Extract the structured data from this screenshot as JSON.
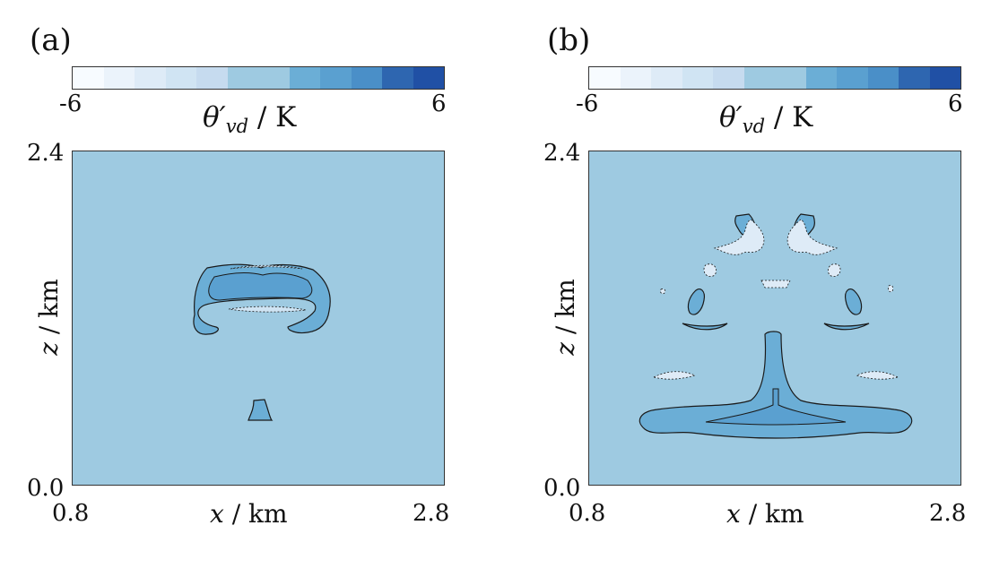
{
  "colormap": [
    "#f7fbff",
    "#ebf3fb",
    "#deebf7",
    "#d0e4f3",
    "#c6dbef",
    "#9ecae1",
    "#9ecae1",
    "#6baed6",
    "#5aa0d0",
    "#4a8fc8",
    "#2e66b0",
    "#2050a5"
  ],
  "chart_data": [
    {
      "type": "contour",
      "panel_label": "(a)",
      "colorbar": {
        "min": "-6",
        "max": "6",
        "label_symbol": "θ′",
        "label_sub": "vd",
        "label_unit": " / K"
      },
      "xlabel_var": "x",
      "xlabel_unit": " / km",
      "ylabel_var": "z",
      "ylabel_unit": " / km",
      "xlim": [
        0.8,
        2.8
      ],
      "ylim": [
        0.0,
        2.4
      ],
      "xticks": [
        "0.8",
        "2.8"
      ],
      "yticks": [
        "0.0",
        "2.4"
      ],
      "background_value": 0,
      "features": [
        {
          "kind": "warm_cap_outer",
          "value": 1.5
        },
        {
          "kind": "warm_cap_inner",
          "value": 3.0
        },
        {
          "kind": "cool_band",
          "value": -1.0
        },
        {
          "kind": "warm_stem",
          "value": 1.5
        }
      ]
    },
    {
      "type": "contour",
      "panel_label": "(b)",
      "colorbar": {
        "min": "-6",
        "max": "6",
        "label_symbol": "θ′",
        "label_sub": "vd",
        "label_unit": " / K"
      },
      "xlabel_var": "x",
      "xlabel_unit": " / km",
      "ylabel_var": "z",
      "ylabel_unit": " / km",
      "xlim": [
        0.8,
        2.8
      ],
      "ylim": [
        0.0,
        2.4
      ],
      "xticks": [
        "0.8",
        "2.8"
      ],
      "yticks": [
        "0.0",
        "2.4"
      ],
      "background_value": 0,
      "features": [
        {
          "kind": "warm_base",
          "value": 1.5
        },
        {
          "kind": "warm_base_core",
          "value": 3.0
        },
        {
          "kind": "warm_eddies",
          "value": 2.0
        },
        {
          "kind": "cool_filaments",
          "value": -1.5
        }
      ]
    }
  ]
}
